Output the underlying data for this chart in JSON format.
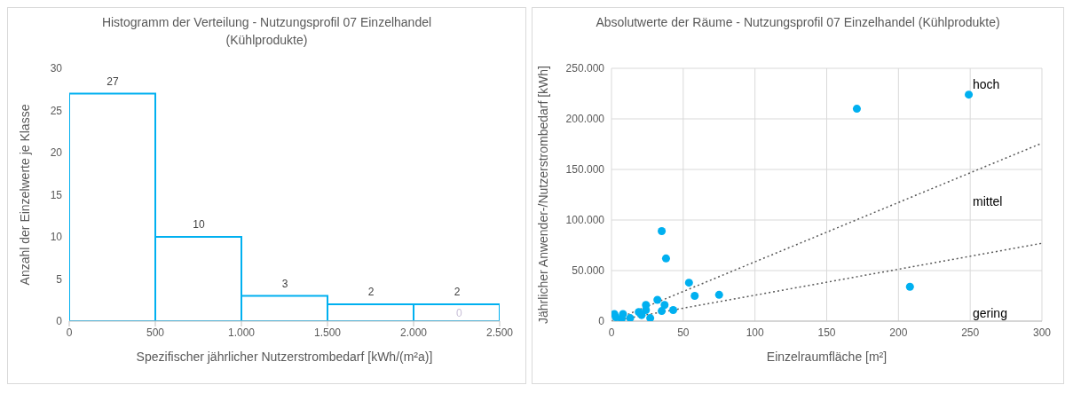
{
  "chart_data": [
    {
      "type": "histogram",
      "title": "Histogramm der Verteilung - Nutzungsprofil 07 Einzelhandel (Kühlprodukte)",
      "xlabel": "Spezifischer jährlicher Nutzerstrombedarf [kWh/(m²a)]",
      "ylabel": "Anzahl der Einzelwerte je Klasse",
      "bins": [
        0,
        500,
        1000,
        1500,
        2000,
        2500
      ],
      "values": [
        27,
        10,
        3,
        2,
        2
      ],
      "color": "#00b0f0",
      "data_labels": true,
      "xlim": [
        0,
        2500
      ],
      "xticks": [
        0,
        500,
        {
          "value": 1000,
          "label": "1.000"
        },
        {
          "value": 1500,
          "label": "1.500"
        },
        {
          "value": 2000,
          "label": "2.000"
        },
        {
          "value": 2500,
          "label": "2.500"
        }
      ],
      "ylim": [
        0,
        30
      ],
      "yticks": [
        0,
        5,
        10,
        15,
        20,
        25,
        30
      ],
      "grid": false,
      "annotations": [
        "0"
      ]
    },
    {
      "type": "scatter",
      "title": "Absolutwerte der Räume - Nutzungsprofil 07 Einzelhandel (Kühlprodukte)",
      "xlabel": "Einzelraumfläche [m²]",
      "ylabel": "Jährlicher Anwender-/Nutzerstrombedarf [kWh]",
      "xlim": [
        0,
        300
      ],
      "xticks": [
        0,
        50,
        100,
        150,
        200,
        250,
        300
      ],
      "ylim": [
        0,
        250000
      ],
      "yticks": [
        0,
        {
          "value": 50000,
          "label": "50.000"
        },
        {
          "value": 100000,
          "label": "100.000"
        },
        {
          "value": 150000,
          "label": "150.000"
        },
        {
          "value": 200000,
          "label": "200.000"
        },
        {
          "value": 250000,
          "label": "250.000"
        }
      ],
      "grid": true,
      "marker": "circle",
      "series": [
        {
          "color": "#00b0f0",
          "x": [
            171,
            249,
            35,
            38,
            208,
            54,
            58,
            75,
            32,
            37,
            24,
            35,
            43,
            19,
            24,
            21,
            27,
            13,
            2,
            8,
            3,
            7
          ],
          "values": [
            210000,
            224000,
            89000,
            62000,
            34000,
            38000,
            25000,
            26000,
            21000,
            16000,
            16000,
            10000,
            11000,
            9000,
            11000,
            6000,
            3000,
            3000,
            7000,
            7000,
            4000,
            2000
          ]
        },
        {
          "type": "line",
          "color": "#595959",
          "line_style": "dotted",
          "marker": "none",
          "x": [
            0,
            300
          ],
          "values": [
            0,
            176000
          ]
        },
        {
          "type": "line",
          "color": "#595959",
          "line_style": "dotted",
          "marker": "none",
          "x": [
            0,
            300
          ],
          "values": [
            0,
            77000
          ]
        }
      ],
      "annotations": [
        "hoch",
        "mittel",
        "gering"
      ]
    }
  ]
}
